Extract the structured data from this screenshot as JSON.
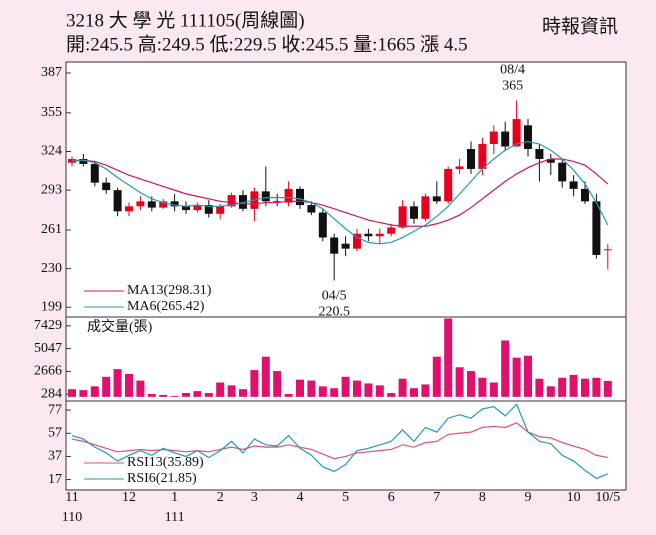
{
  "header": {
    "title": "3218 大 學 光 111105(周線圖)",
    "quote": "開:245.5 高:249.5 低:229.5 收:245.5 量:1665 漲 4.5",
    "source": "時報資訊"
  },
  "chart_data": [
    {
      "type": "candlestick",
      "categories": [
        "11",
        null,
        null,
        null,
        null,
        "12",
        null,
        null,
        null,
        "1",
        null,
        null,
        null,
        "2",
        null,
        null,
        "3",
        null,
        null,
        null,
        "4",
        null,
        null,
        null,
        "5",
        null,
        null,
        null,
        "6",
        null,
        null,
        null,
        "7",
        null,
        null,
        null,
        "8",
        null,
        null,
        null,
        "9",
        null,
        null,
        null,
        "10",
        null,
        null,
        "10/5"
      ],
      "year_labels": [
        "110",
        null,
        null,
        null,
        null,
        null,
        null,
        null,
        null,
        "111",
        null,
        null,
        null,
        null,
        null,
        null,
        null,
        null,
        null,
        null,
        null,
        null,
        null,
        null,
        null,
        null,
        null,
        null,
        null,
        null,
        null,
        null,
        null,
        null,
        null,
        null,
        null,
        null,
        null,
        null,
        null,
        null,
        null,
        null,
        null,
        null,
        null,
        null
      ],
      "open": [
        315,
        318,
        314,
        299,
        293,
        276,
        280,
        284,
        279,
        284,
        280,
        277,
        281,
        274,
        280,
        289,
        278,
        292,
        284,
        283,
        294,
        281,
        275,
        255,
        250,
        246,
        258,
        256,
        258,
        263,
        280,
        270,
        288,
        284,
        310,
        326,
        310,
        330,
        340,
        328,
        345,
        326,
        318,
        315,
        300,
        294,
        284,
        245.5
      ],
      "high": [
        320,
        322,
        316,
        303,
        295,
        283,
        288,
        288,
        286,
        290,
        284,
        283,
        285,
        282,
        291,
        293,
        295,
        312,
        290,
        300,
        296,
        284,
        278,
        258,
        256,
        262,
        262,
        262,
        266,
        285,
        284,
        290,
        300,
        312,
        318,
        332,
        335,
        345,
        348,
        365,
        350,
        330,
        322,
        318,
        305,
        300,
        290,
        249.5
      ],
      "low": [
        312,
        312,
        296,
        290,
        272,
        272,
        277,
        276,
        278,
        276,
        274,
        275,
        271,
        270,
        279,
        276,
        268,
        280,
        280,
        280,
        278,
        273,
        252,
        220.5,
        240,
        244,
        252,
        250,
        256,
        262,
        266,
        268,
        282,
        282,
        306,
        306,
        305,
        322,
        325,
        328,
        320,
        300,
        305,
        295,
        288,
        282,
        238,
        229.5
      ],
      "close": [
        318,
        314,
        299,
        293,
        276,
        280,
        284,
        279,
        284,
        280,
        277,
        281,
        274,
        280,
        289,
        278,
        292,
        284,
        283,
        294,
        281,
        275,
        255,
        242,
        246,
        258,
        256,
        258,
        263,
        280,
        270,
        288,
        284,
        310,
        312,
        310,
        330,
        340,
        328,
        350,
        326,
        318,
        315,
        300,
        294,
        284,
        241,
        245.5
      ],
      "up_color": "#e8001c",
      "down_color": "#111111",
      "series": [
        {
          "name": "MA13(298.31)",
          "color": "#d4145a",
          "values": [
            316,
            317,
            316,
            313,
            309,
            305,
            302,
            299,
            296,
            293,
            290,
            288,
            286,
            284,
            283,
            282,
            282,
            283,
            283,
            284,
            284,
            283,
            281,
            278,
            275,
            272,
            269,
            267,
            265,
            264,
            264,
            264,
            266,
            269,
            273,
            279,
            286,
            293,
            300,
            306,
            311,
            315,
            318,
            318,
            316,
            313,
            306,
            298
          ]
        },
        {
          "name": "MA6(265.42)",
          "color": "#1f9bb5",
          "values": [
            317,
            317,
            315,
            310,
            303,
            297,
            291,
            286,
            283,
            281,
            280,
            281,
            280,
            280,
            281,
            283,
            285,
            287,
            287,
            287,
            286,
            283,
            278,
            270,
            262,
            255,
            251,
            250,
            251,
            255,
            260,
            265,
            272,
            280,
            290,
            300,
            310,
            318,
            325,
            330,
            332,
            330,
            325,
            318,
            309,
            298,
            283,
            265
          ]
        }
      ],
      "annotations": {
        "high": "08/4",
        "low": "04/5"
      },
      "ylim": [
        192,
        395
      ],
      "yticks": [
        199,
        230,
        261,
        293,
        324,
        355,
        387
      ],
      "grid": false
    },
    {
      "type": "bar",
      "label": "成交量(張)",
      "color": "#e0106e",
      "values": [
        800,
        700,
        1100,
        2100,
        2900,
        2400,
        1700,
        300,
        200,
        100,
        400,
        600,
        400,
        1500,
        1200,
        800,
        2800,
        4200,
        2700,
        300,
        1800,
        1700,
        1100,
        900,
        2100,
        1700,
        1400,
        1200,
        400,
        1900,
        900,
        1300,
        4200,
        8200,
        3100,
        2700,
        2000,
        1500,
        5900,
        4100,
        4300,
        1900,
        1100,
        2000,
        2300,
        1900,
        2000,
        1665
      ],
      "ylim": [
        -330,
        8250
      ],
      "yticks": [
        284,
        2666,
        5047,
        7429
      ],
      "grid": false
    },
    {
      "type": "line",
      "series": [
        {
          "name": "RSI13(35.89)",
          "color": "#e0507a",
          "values": [
            52,
            50,
            47,
            44,
            41,
            42,
            43,
            42,
            43,
            42,
            41,
            42,
            41,
            43,
            45,
            43,
            46,
            45,
            45,
            47,
            45,
            43,
            39,
            35,
            37,
            40,
            41,
            42,
            43,
            47,
            45,
            49,
            50,
            56,
            57,
            58,
            62,
            63,
            62,
            66,
            58,
            54,
            53,
            49,
            46,
            43,
            38,
            36
          ]
        },
        {
          "name": "RSI6(21.85)",
          "color": "#1f9bb5",
          "values": [
            55,
            52,
            45,
            40,
            33,
            38,
            42,
            38,
            44,
            40,
            37,
            42,
            36,
            42,
            50,
            40,
            52,
            47,
            46,
            55,
            44,
            38,
            28,
            24,
            30,
            42,
            44,
            47,
            50,
            60,
            50,
            62,
            58,
            70,
            73,
            70,
            78,
            80,
            72,
            82,
            58,
            50,
            48,
            38,
            33,
            25,
            18,
            22
          ]
        }
      ],
      "ylim": [
        8,
        84
      ],
      "yticks": [
        17,
        37,
        57,
        77
      ],
      "grid": false
    }
  ]
}
